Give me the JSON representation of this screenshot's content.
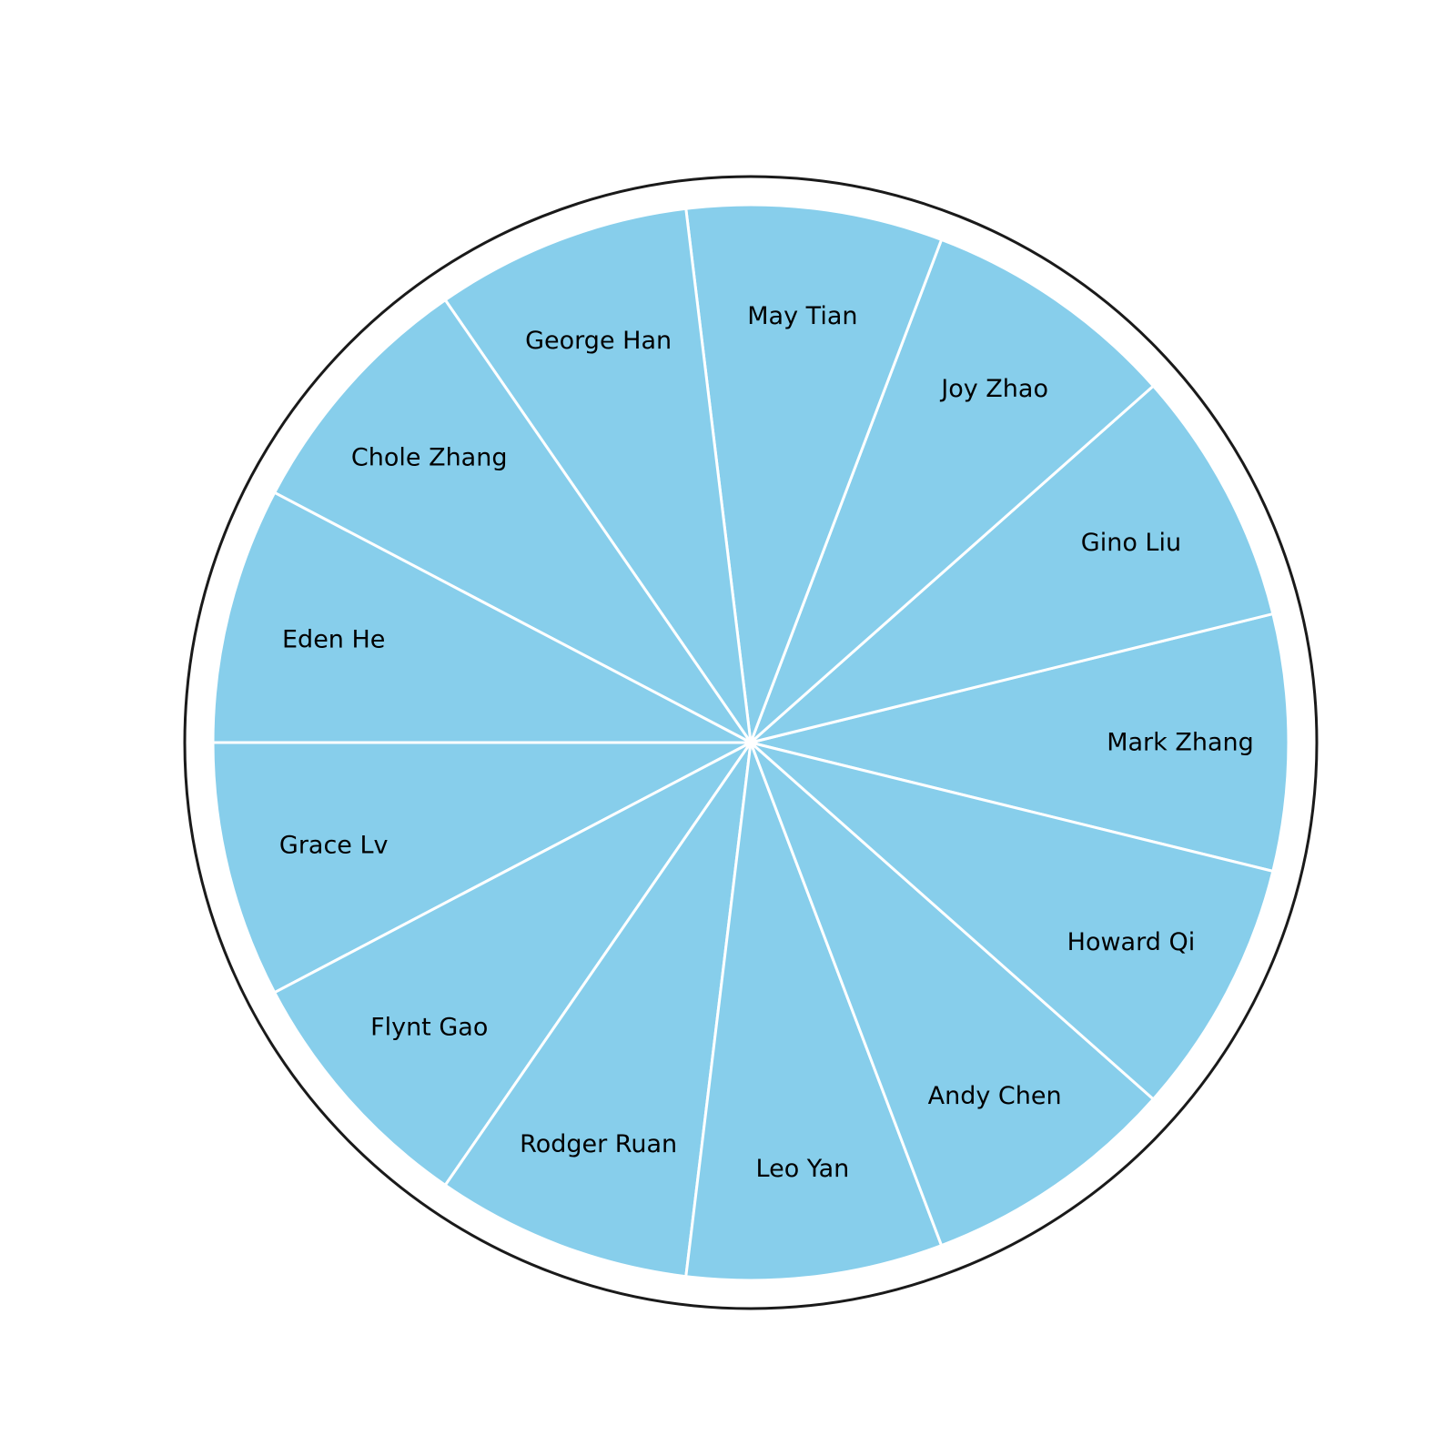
{
  "chart_data": {
    "type": "pie",
    "labels": [
      "Mark Zhang",
      "Gino Liu",
      "Joy Zhao",
      "May Tian",
      "George Han",
      "Chole Zhang",
      "Eden He",
      "Grace Lv",
      "Flynt Gao",
      "Rodger Ruan",
      "Leo Yan",
      "Andy Chen",
      "Howard Qi"
    ],
    "values": [
      1,
      1,
      1,
      1,
      1,
      1,
      1,
      1,
      1,
      1,
      1,
      1,
      1
    ],
    "colors": {
      "slice_fill": "#87CEEB",
      "slice_edge": "#ffffff",
      "outer_ring": "#1a1a1a",
      "label_text": "#000000"
    },
    "start_angle_deg": -13.846,
    "direction": "counterclockwise",
    "outer_ring": true,
    "legend": "none"
  }
}
